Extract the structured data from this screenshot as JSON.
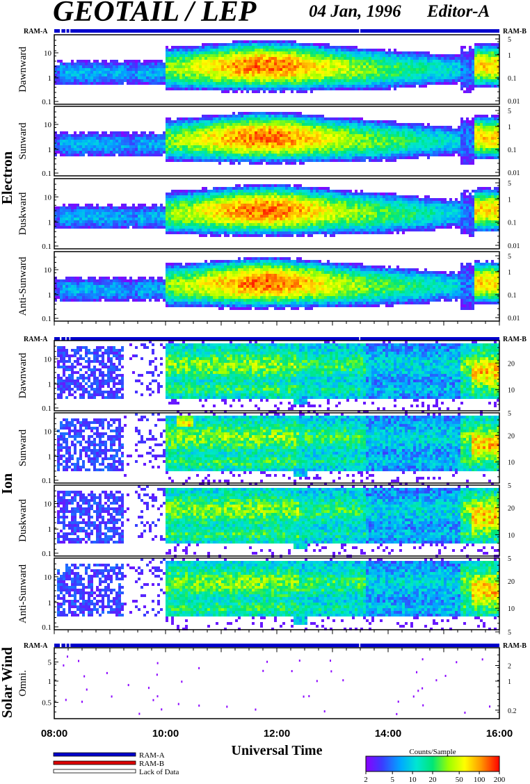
{
  "header": {
    "title": "GEOTAIL / LEP",
    "date": "04 Jan, 1996",
    "editor": "Editor-A"
  },
  "chart_data": {
    "type": "heatmap",
    "x_axis": {
      "label": "Universal Time",
      "range": [
        "08:00",
        "16:00"
      ],
      "tick_labels": [
        "08:00",
        "10:00",
        "12:00",
        "14:00",
        "16:00"
      ],
      "minor_ticks_per_hour": 4
    },
    "ram_labels": {
      "left": "RAM-A",
      "right": "RAM-B"
    },
    "groups": [
      {
        "name": "Electron",
        "panels": [
          {
            "name": "Dawnward",
            "y_left_ticks": [
              "10",
              "1",
              "0.1"
            ],
            "y_right_ticks": [
              "5",
              "1",
              "0.1",
              "0.01"
            ]
          },
          {
            "name": "Sunward",
            "y_left_ticks": [
              "10",
              "1",
              "0.1"
            ],
            "y_right_ticks": [
              "5",
              "1",
              "0.1",
              "0.01"
            ]
          },
          {
            "name": "Duskward",
            "y_left_ticks": [
              "10",
              "1",
              "0.1"
            ],
            "y_right_ticks": [
              "5",
              "1",
              "0.1",
              "0.01"
            ]
          },
          {
            "name": "Anti-Sunward",
            "y_left_ticks": [
              "10",
              "1",
              "0.1"
            ],
            "y_right_ticks": [
              "5",
              "1",
              "0.1",
              "0.01"
            ]
          }
        ]
      },
      {
        "name": "Ion",
        "panels": [
          {
            "name": "Dawnward",
            "y_left_ticks": [
              "10",
              "1",
              "0.1"
            ],
            "y_right_ticks": [
              "20",
              "10",
              "5"
            ]
          },
          {
            "name": "Sunward",
            "y_left_ticks": [
              "10",
              "1",
              "0.1"
            ],
            "y_right_ticks": [
              "20",
              "10",
              "5"
            ]
          },
          {
            "name": "Duskward",
            "y_left_ticks": [
              "10",
              "1",
              "0.1"
            ],
            "y_right_ticks": [
              "20",
              "10",
              "5"
            ]
          },
          {
            "name": "Anti-Sunward",
            "y_left_ticks": [
              "10",
              "1",
              "0.1"
            ],
            "y_right_ticks": [
              "20",
              "10",
              "5"
            ]
          }
        ]
      },
      {
        "name": "Solar Wind",
        "panels": [
          {
            "name": "Omni.",
            "y_left_ticks": [
              "5",
              "1",
              "0.5"
            ],
            "y_right_ticks": [
              "2",
              "1",
              "0.2"
            ]
          }
        ]
      }
    ],
    "data_onset_hours": {
      "electron_enhanced_start": 10.0,
      "ion_enhanced_start": 10.05,
      "late_burst": 15.35
    },
    "legend": [
      {
        "label": "RAM-A",
        "color": "#0000cc"
      },
      {
        "label": "RAM-B",
        "color": "#dd0000"
      },
      {
        "label": "Lack of Data",
        "color": "#ffffff"
      }
    ],
    "colorbar": {
      "title": "Counts/Sample",
      "tick_labels": [
        "2",
        "5",
        "10",
        "20",
        "50",
        "100",
        "200"
      ],
      "scale": "log",
      "range": [
        2,
        200
      ]
    }
  }
}
